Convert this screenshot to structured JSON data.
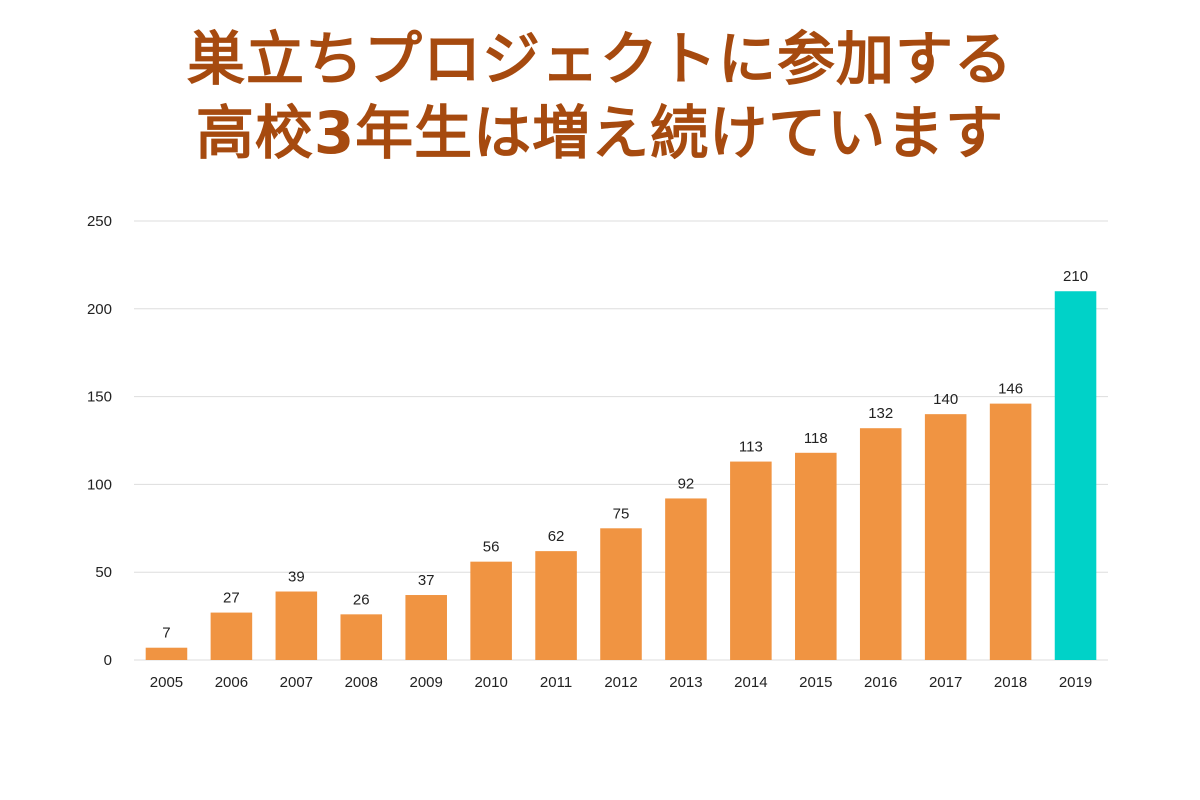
{
  "title": {
    "line1": "巣立ちプロジェクトに参加する",
    "line2": "高校3年生は増え続けています"
  },
  "colors": {
    "title": "#a64a0f",
    "bar": "#f09442",
    "highlight_bar": "#00d2c8",
    "grid": "#dddddd",
    "text": "#222222"
  },
  "chart_data": {
    "type": "bar",
    "categories": [
      "2005",
      "2006",
      "2007",
      "2008",
      "2009",
      "2010",
      "2011",
      "2012",
      "2013",
      "2014",
      "2015",
      "2016",
      "2017",
      "2018",
      "2019"
    ],
    "values": [
      7,
      27,
      39,
      26,
      37,
      56,
      62,
      75,
      92,
      113,
      118,
      132,
      140,
      146,
      210
    ],
    "highlight_category": "2019",
    "ylim": [
      0,
      250
    ],
    "yticks": [
      0,
      50,
      100,
      150,
      200,
      250
    ],
    "grid": true,
    "legend": "none",
    "data_labels": true,
    "xlabel": "",
    "ylabel": ""
  }
}
